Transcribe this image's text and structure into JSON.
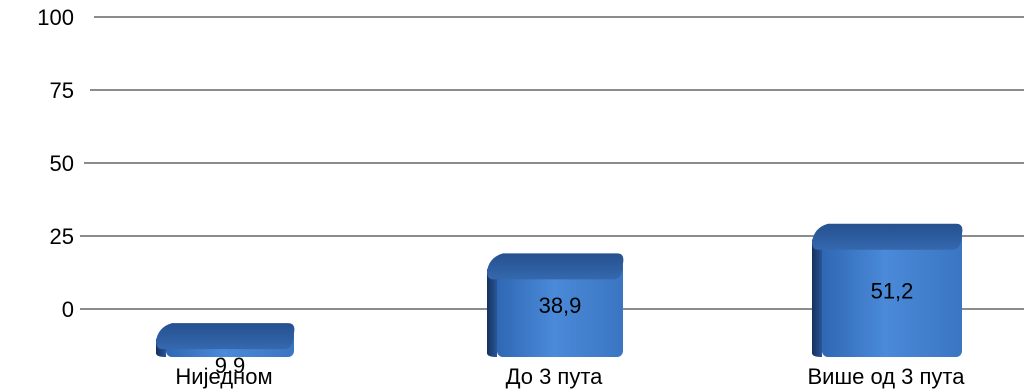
{
  "chart_data": {
    "type": "bar",
    "categories": [
      "Ниједном",
      "До 3 пута",
      "Више од 3 пута"
    ],
    "values": [
      9.9,
      38.9,
      51.2
    ],
    "value_labels": [
      "9,9",
      "38,9",
      "51,2"
    ],
    "y_ticks": [
      "0",
      "25",
      "50",
      "75",
      "100"
    ],
    "y_tick_values": [
      0,
      25,
      50,
      75,
      100
    ],
    "ylim": [
      0,
      100
    ],
    "grid": true,
    "bar_style": "3d",
    "colors": {
      "bar_front": "#3f7fd0",
      "bar_top": "#2e62a8",
      "bar_side": "#1c3f75",
      "grid": "#8c8c8c"
    }
  }
}
